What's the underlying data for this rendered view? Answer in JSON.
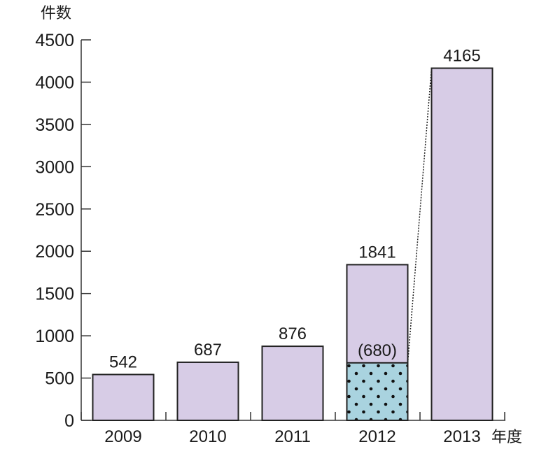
{
  "chart_data": {
    "type": "bar",
    "ylabel": "件数",
    "xlabel": "年度",
    "ylim": [
      0,
      4500
    ],
    "yticks": [
      0,
      500,
      1000,
      1500,
      2000,
      2500,
      3000,
      3500,
      4000,
      4500
    ],
    "categories": [
      "2009",
      "2010",
      "2011",
      "2012",
      "2013"
    ],
    "values": [
      542,
      687,
      876,
      1841,
      4165
    ],
    "value_labels": [
      "542",
      "687",
      "876",
      "1841",
      "4165"
    ],
    "highlight": {
      "category": "2012",
      "value": 680,
      "label": "(680)",
      "pattern": "dotted"
    },
    "grid": false,
    "legend": "none",
    "colors": {
      "bar": "#d7cce6",
      "highlight": "#a9d3df",
      "outline": "#222222"
    }
  }
}
